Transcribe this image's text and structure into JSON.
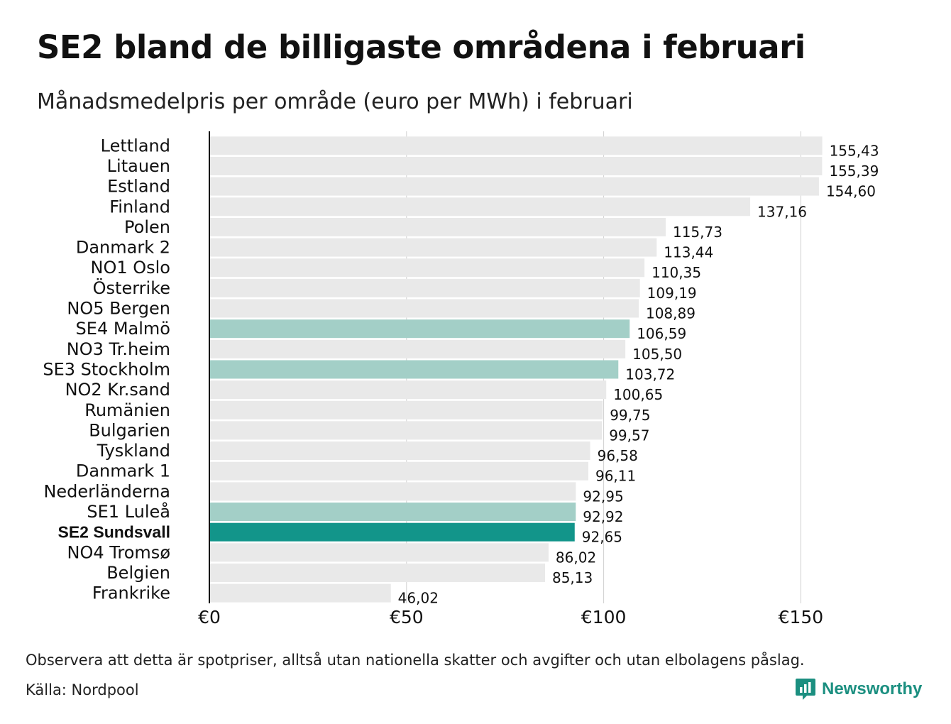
{
  "title": "SE2 bland de billigaste områdena i februari",
  "subtitle": "Månadsmedelpris per område (euro per MWh) i februari",
  "note": "Observera att detta är spotpriser, alltså utan nationella skatter och avgifter och utan elbolagens påslag.",
  "source": "Källa: Nordpool",
  "brand": {
    "name": "Newsworthy",
    "icon": "newsworthy-logo-icon"
  },
  "colors": {
    "default_bar": "#e9e9e9",
    "se_bar": "#a3cfc7",
    "highlight_bar": "#12958a",
    "gridline": "#d0d0d0",
    "axis": "#111111",
    "brand": "#1b8f80"
  },
  "chart_data": {
    "type": "bar",
    "orientation": "horizontal",
    "title": "SE2 bland de billigaste områdena i februari",
    "subtitle": "Månadsmedelpris per område (euro per MWh) i februari",
    "xlabel": "",
    "ylabel": "",
    "xlim": [
      0,
      170
    ],
    "x_ticks": [
      0,
      50,
      100,
      150
    ],
    "x_tick_labels": [
      "€0",
      "€50",
      "€100",
      "€150"
    ],
    "grid": true,
    "categories": [
      "Lettland",
      "Litauen",
      "Estland",
      "Finland",
      "Polen",
      "Danmark  2",
      "NO1 Oslo",
      "Österrike",
      "NO5 Bergen",
      "SE4  Malmö",
      "NO3 Tr.heim",
      "SE3  Stockholm",
      "NO2 Kr.sand",
      "Rumänien",
      "Bulgarien",
      "Tyskland",
      "Danmark  1",
      "Nederländerna",
      "SE1  Luleå",
      "SE2 Sundsvall",
      "NO4 Tromsø",
      "Belgien",
      "Frankrike"
    ],
    "values": [
      155.43,
      155.39,
      154.6,
      137.16,
      115.73,
      113.44,
      110.35,
      109.19,
      108.89,
      106.59,
      105.5,
      103.72,
      100.65,
      99.75,
      99.57,
      96.58,
      96.11,
      92.95,
      92.92,
      92.65,
      86.02,
      85.13,
      46.02
    ],
    "value_labels": [
      "155,43",
      "155,39",
      "154,60",
      "137,16",
      "115,73",
      "113,44",
      "110,35",
      "109,19",
      "108,89",
      "106,59",
      "105,50",
      "103,72",
      "100,65",
      "99,75",
      "99,57",
      "96,58",
      "96,11",
      "92,95",
      "92,92",
      "92,65",
      "86,02",
      "85,13",
      "46,02"
    ],
    "bar_style": [
      "default",
      "default",
      "default",
      "default",
      "default",
      "default",
      "default",
      "default",
      "default",
      "se",
      "default",
      "se",
      "default",
      "default",
      "default",
      "default",
      "default",
      "default",
      "se",
      "highlight",
      "default",
      "default",
      "default"
    ]
  }
}
